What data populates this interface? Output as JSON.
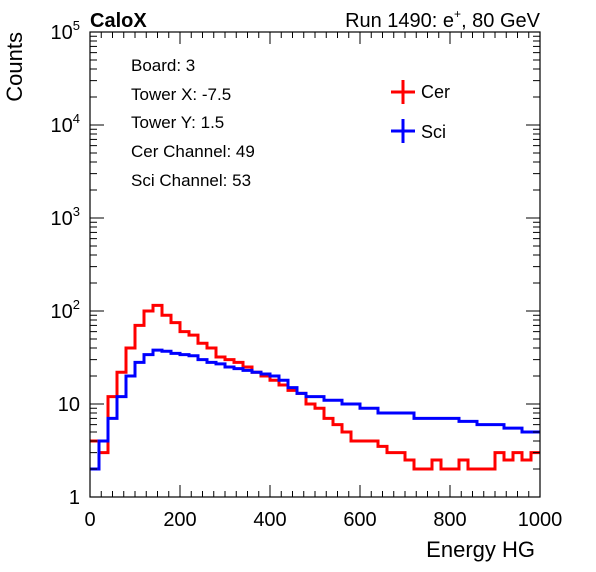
{
  "header": {
    "experiment_label": "CaloX",
    "run_label": "Run 1490: e",
    "run_label_sup": "+",
    "run_label_tail": ", 80 GeV"
  },
  "info": {
    "lines": [
      "Board: 3",
      "Tower X: -7.5",
      "Tower Y: 1.5",
      "Cer Channel: 49",
      "Sci Channel: 53"
    ]
  },
  "colors": {
    "cer": "#ff0000",
    "sci": "#0000ff",
    "axis": "#000000"
  },
  "chart_data": {
    "type": "line",
    "style": "step-histogram",
    "xlabel": "Energy HG",
    "ylabel": "Counts",
    "xlim": [
      0,
      1000
    ],
    "ylim": [
      1,
      100000
    ],
    "yscale": "log",
    "x_ticks": [
      "0",
      "200",
      "400",
      "600",
      "800",
      "1000"
    ],
    "y_ticks": [
      {
        "value": 1,
        "label": "1"
      },
      {
        "value": 10,
        "label": "10"
      },
      {
        "value": 100,
        "label": "10",
        "sup": "2"
      },
      {
        "value": 1000,
        "label": "10",
        "sup": "3"
      },
      {
        "value": 10000,
        "label": "10",
        "sup": "4"
      },
      {
        "value": 100000,
        "label": "10",
        "sup": "5"
      }
    ],
    "legend_position": "top-right",
    "grid": false,
    "bin_width": 20,
    "x": [
      10,
      30,
      50,
      70,
      90,
      110,
      130,
      150,
      170,
      190,
      210,
      230,
      250,
      270,
      290,
      310,
      330,
      350,
      370,
      390,
      410,
      430,
      450,
      470,
      490,
      510,
      530,
      550,
      570,
      590,
      610,
      630,
      650,
      670,
      690,
      710,
      730,
      750,
      770,
      790,
      810,
      830,
      850,
      870,
      890,
      910,
      930,
      950,
      970,
      990
    ],
    "series": [
      {
        "name": "Cer",
        "color": "#ff0000",
        "values": [
          4,
          3,
          12,
          22,
          40,
          70,
          100,
          115,
          90,
          75,
          60,
          55,
          45,
          40,
          32,
          30,
          28,
          25,
          22,
          20,
          18,
          16,
          14,
          13,
          10,
          9,
          7,
          6,
          5,
          4,
          4,
          4,
          3.5,
          3,
          3,
          2.5,
          2,
          2,
          2.5,
          2,
          2,
          2.5,
          2,
          2,
          2,
          3,
          2.5,
          3,
          2.5,
          3
        ]
      },
      {
        "name": "Sci",
        "color": "#0000ff",
        "values": [
          2,
          4,
          7,
          12,
          20,
          28,
          34,
          38,
          37,
          35,
          34,
          33,
          30,
          28,
          27,
          25,
          24,
          23,
          22,
          21,
          20,
          18,
          15,
          13,
          12,
          12,
          11,
          11,
          10,
          10,
          9,
          9,
          8,
          8,
          8,
          8,
          7,
          7,
          7,
          7,
          7,
          6.5,
          6.5,
          6,
          6,
          6,
          5.5,
          5.5,
          5,
          5
        ]
      }
    ]
  }
}
